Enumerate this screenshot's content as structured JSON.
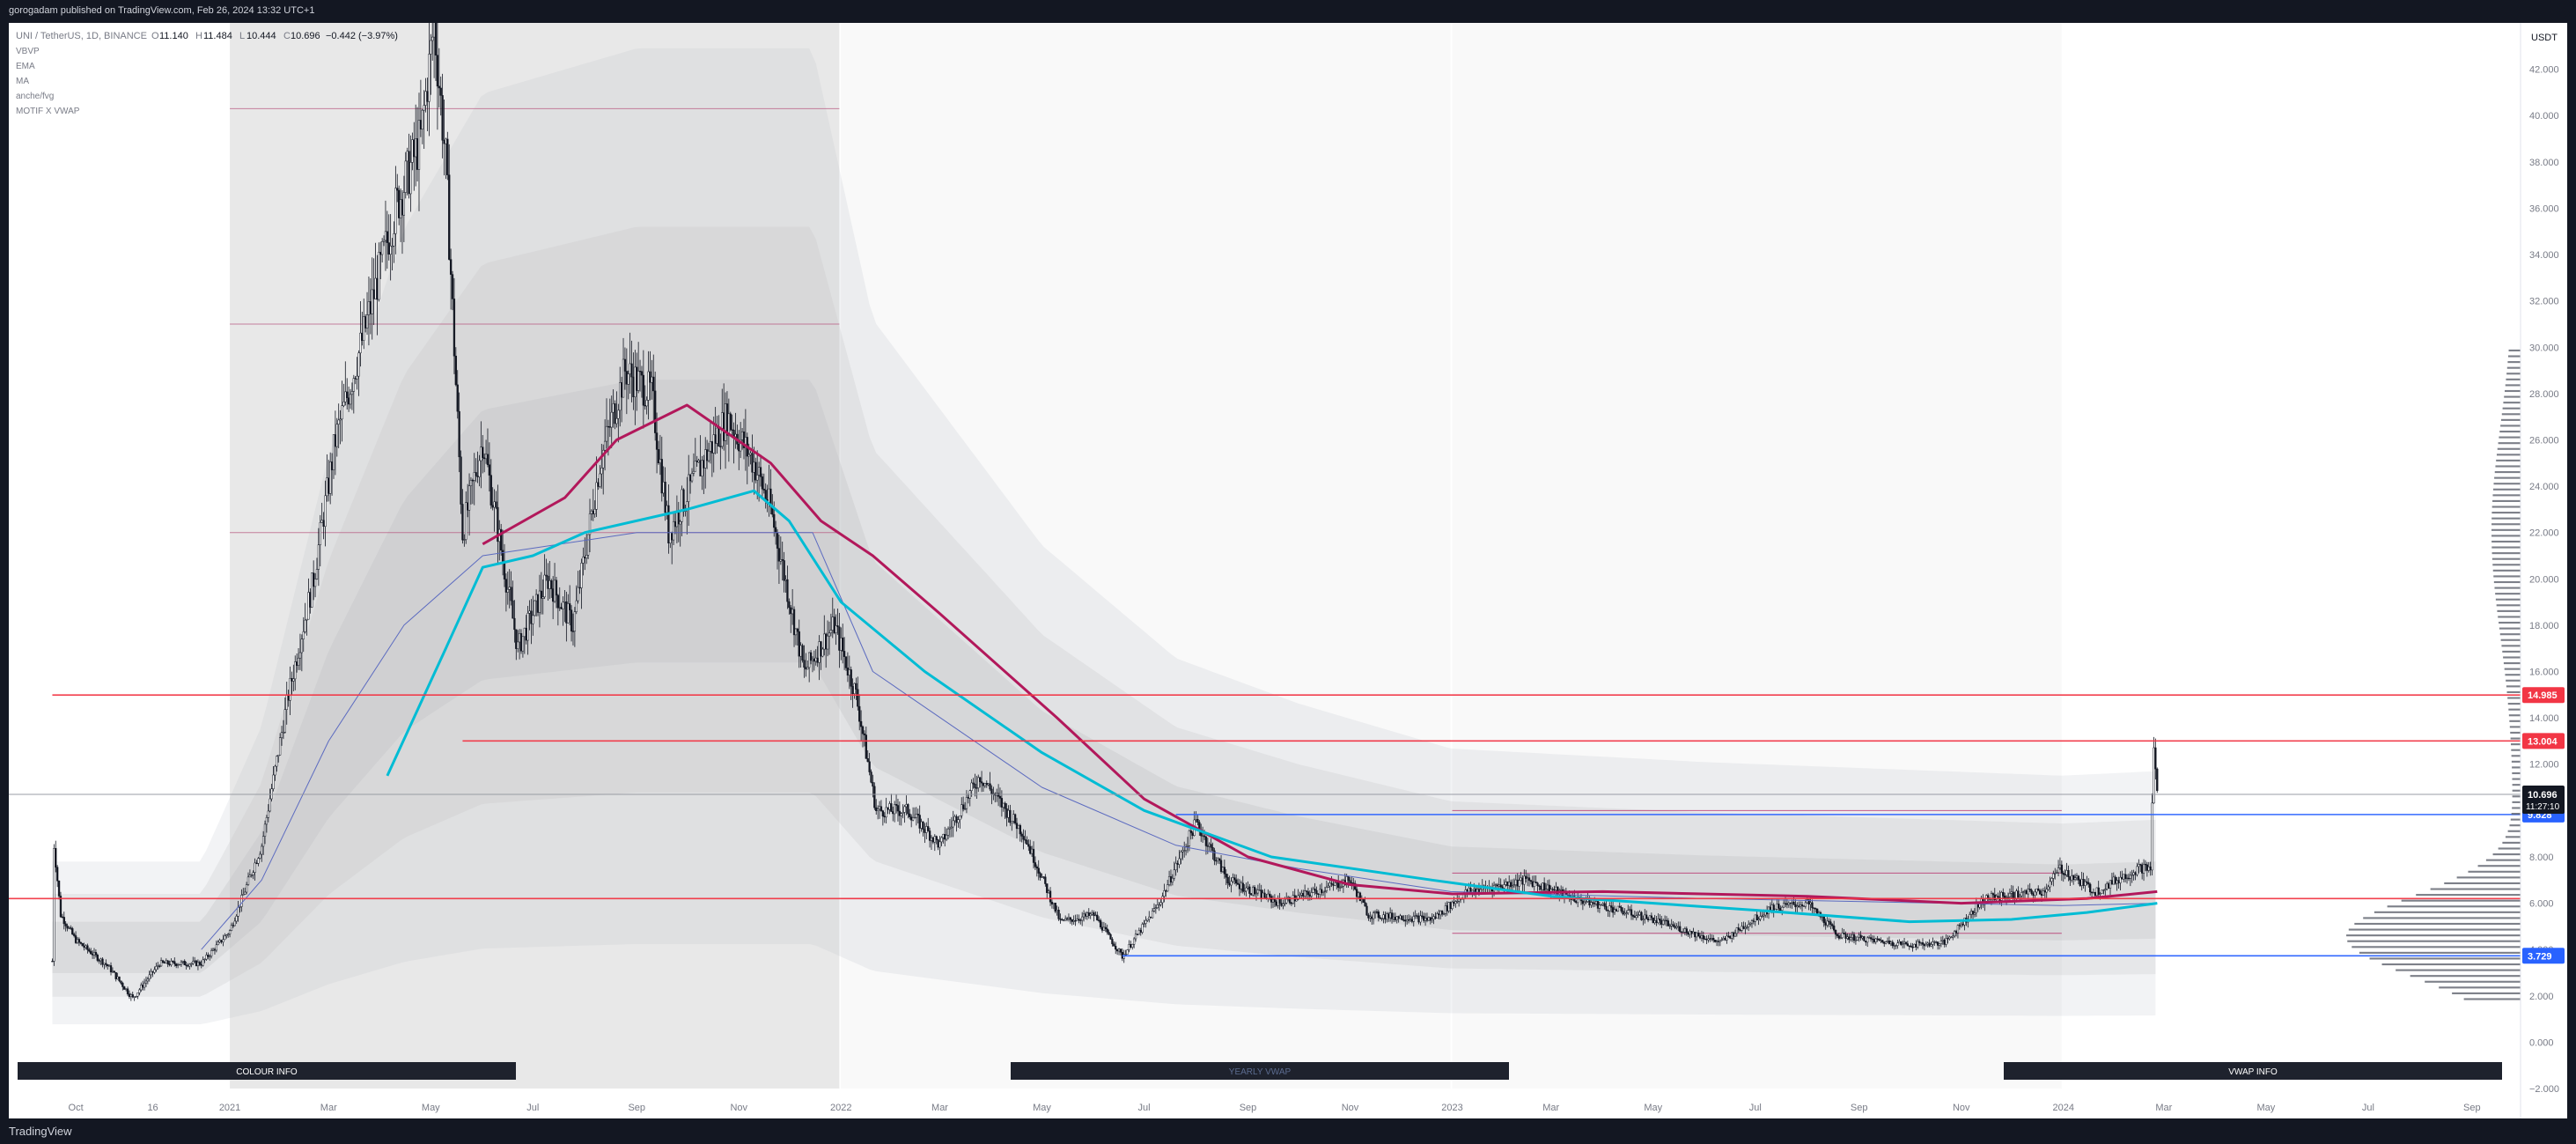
{
  "header": {
    "published": "gorogadam published on TradingView.com, Feb 26, 2024 13:32 UTC+1"
  },
  "legend": {
    "symbol": "UNI / TetherUS, 1D, BINANCE",
    "o_label": "O",
    "o": "11.140",
    "h_label": "H",
    "h": "11.484",
    "l_label": "L",
    "l": "10.444",
    "c_label": "C",
    "c": "10.696",
    "change": "−0.442 (−3.97%)",
    "indicators": [
      "VBVP",
      "EMA",
      "MA",
      "anche/fvg",
      "MOTIF X VWAP"
    ]
  },
  "footer": {
    "brand": "TradingView"
  },
  "colors": {
    "candle": "#131722",
    "ema_cyan": "#00bcd4",
    "ma_magenta": "#b2185b",
    "level_red": "#f23645",
    "level_blue": "#2962ff",
    "level_pink": "#b2185b",
    "band": "#9e9e9e",
    "price_badge": "#131722",
    "red_badge": "#f23645",
    "blue_badge": "#2962ff"
  },
  "info_boxes": [
    "COLOUR INFO",
    "YEARLY VWAP",
    "VWAP INFO"
  ],
  "chart_data": {
    "type": "candlestick",
    "title": "",
    "symbol": "UNI / TetherUS",
    "interval": "1D",
    "exchange": "BINANCE",
    "currency_label": "USDT",
    "y_ticks": [
      -2,
      0,
      2,
      4,
      6,
      8,
      10,
      12,
      14,
      16,
      18,
      20,
      22,
      24,
      26,
      28,
      30,
      32,
      34,
      36,
      38,
      40,
      42
    ],
    "ylim": [
      -2.0,
      44.0
    ],
    "x_ticks": [
      {
        "label": "Oct",
        "date": "2020-10-01"
      },
      {
        "label": "16",
        "date": "2020-11-16"
      },
      {
        "label": "2021",
        "date": "2021-01-01"
      },
      {
        "label": "Mar",
        "date": "2021-03-01"
      },
      {
        "label": "May",
        "date": "2021-05-01"
      },
      {
        "label": "Jul",
        "date": "2021-07-01"
      },
      {
        "label": "Sep",
        "date": "2021-09-01"
      },
      {
        "label": "Nov",
        "date": "2021-11-01"
      },
      {
        "label": "2022",
        "date": "2022-01-01"
      },
      {
        "label": "Mar",
        "date": "2022-03-01"
      },
      {
        "label": "May",
        "date": "2022-05-01"
      },
      {
        "label": "Jul",
        "date": "2022-07-01"
      },
      {
        "label": "Sep",
        "date": "2022-09-01"
      },
      {
        "label": "Nov",
        "date": "2022-11-01"
      },
      {
        "label": "2023",
        "date": "2023-01-01"
      },
      {
        "label": "Mar",
        "date": "2023-03-01"
      },
      {
        "label": "May",
        "date": "2023-05-01"
      },
      {
        "label": "Jul",
        "date": "2023-07-01"
      },
      {
        "label": "Sep",
        "date": "2023-09-01"
      },
      {
        "label": "Nov",
        "date": "2023-11-01"
      },
      {
        "label": "2024",
        "date": "2024-01-01"
      },
      {
        "label": "Mar",
        "date": "2024-03-01"
      },
      {
        "label": "May",
        "date": "2024-05-01"
      },
      {
        "label": "Jul",
        "date": "2024-07-01"
      },
      {
        "label": "Sep",
        "date": "2024-09-01"
      }
    ],
    "xlim": [
      "2020-08-22",
      "2024-09-30"
    ],
    "price_path": [
      [
        "2020-09-17",
        3.5
      ],
      [
        "2020-09-18",
        8.5
      ],
      [
        "2020-09-22",
        5.5
      ],
      [
        "2020-10-01",
        4.4
      ],
      [
        "2020-10-20",
        3.3
      ],
      [
        "2020-11-04",
        1.9
      ],
      [
        "2020-11-20",
        3.4
      ],
      [
        "2020-12-15",
        3.4
      ],
      [
        "2021-01-01",
        4.8
      ],
      [
        "2021-01-20",
        8.5
      ],
      [
        "2021-02-05",
        15
      ],
      [
        "2021-02-20",
        20
      ],
      [
        "2021-03-05",
        26
      ],
      [
        "2021-03-20",
        30
      ],
      [
        "2021-04-10",
        36
      ],
      [
        "2021-04-25",
        39
      ],
      [
        "2021-05-03",
        44
      ],
      [
        "2021-05-10",
        38
      ],
      [
        "2021-05-20",
        22
      ],
      [
        "2021-06-01",
        26
      ],
      [
        "2021-06-22",
        17
      ],
      [
        "2021-07-10",
        20
      ],
      [
        "2021-07-25",
        18
      ],
      [
        "2021-08-10",
        25
      ],
      [
        "2021-08-25",
        29
      ],
      [
        "2021-09-10",
        28
      ],
      [
        "2021-09-20",
        22
      ],
      [
        "2021-10-10",
        25
      ],
      [
        "2021-10-25",
        27
      ],
      [
        "2021-11-10",
        25
      ],
      [
        "2021-11-20",
        23
      ],
      [
        "2021-12-10",
        16
      ],
      [
        "2021-12-28",
        18
      ],
      [
        "2022-01-10",
        15
      ],
      [
        "2022-01-22",
        10
      ],
      [
        "2022-02-10",
        10
      ],
      [
        "2022-03-01",
        8.5
      ],
      [
        "2022-03-25",
        11.5
      ],
      [
        "2022-04-20",
        9
      ],
      [
        "2022-05-12",
        5.2
      ],
      [
        "2022-06-01",
        5.5
      ],
      [
        "2022-06-18",
        3.7
      ],
      [
        "2022-07-10",
        6
      ],
      [
        "2022-08-01",
        9.5
      ],
      [
        "2022-08-20",
        7
      ],
      [
        "2022-09-20",
        6
      ],
      [
        "2022-11-01",
        7
      ],
      [
        "2022-11-12",
        5.5
      ],
      [
        "2022-12-20",
        5.3
      ],
      [
        "2023-01-10",
        6.5
      ],
      [
        "2023-02-15",
        7
      ],
      [
        "2023-03-15",
        6.2
      ],
      [
        "2023-05-01",
        5.3
      ],
      [
        "2023-06-10",
        4.3
      ],
      [
        "2023-07-10",
        5.8
      ],
      [
        "2023-08-01",
        6
      ],
      [
        "2023-08-20",
        4.6
      ],
      [
        "2023-10-01",
        4.2
      ],
      [
        "2023-10-22",
        4.3
      ],
      [
        "2023-11-15",
        6.2
      ],
      [
        "2023-12-20",
        6.5
      ],
      [
        "2023-12-30",
        7.5
      ],
      [
        "2024-01-20",
        6.5
      ],
      [
        "2024-02-15",
        7.5
      ],
      [
        "2024-02-22",
        7.5
      ],
      [
        "2024-02-24",
        12.8
      ],
      [
        "2024-02-26",
        10.7
      ]
    ],
    "ema_path": [
      [
        "2021-04-05",
        11.5
      ],
      [
        "2021-05-10",
        17
      ],
      [
        "2021-06-01",
        20.5
      ],
      [
        "2021-07-01",
        21
      ],
      [
        "2021-08-01",
        22
      ],
      [
        "2021-10-01",
        23
      ],
      [
        "2021-11-10",
        23.8
      ],
      [
        "2021-12-01",
        22.5
      ],
      [
        "2022-01-01",
        19
      ],
      [
        "2022-02-20",
        16
      ],
      [
        "2022-05-01",
        12.5
      ],
      [
        "2022-07-01",
        10
      ],
      [
        "2022-09-15",
        8
      ],
      [
        "2022-12-20",
        7
      ],
      [
        "2023-03-01",
        6.3
      ],
      [
        "2023-07-01",
        5.7
      ],
      [
        "2023-10-01",
        5.2
      ],
      [
        "2023-12-01",
        5.3
      ],
      [
        "2024-01-15",
        5.6
      ],
      [
        "2024-02-26",
        6.0
      ]
    ],
    "ma_path": [
      [
        "2021-06-01",
        21.5
      ],
      [
        "2021-07-20",
        23.5
      ],
      [
        "2021-08-20",
        26
      ],
      [
        "2021-10-01",
        27.5
      ],
      [
        "2021-11-20",
        25
      ],
      [
        "2021-12-20",
        22.5
      ],
      [
        "2022-01-20",
        21
      ],
      [
        "2022-03-01",
        18.5
      ],
      [
        "2022-05-10",
        14
      ],
      [
        "2022-07-01",
        10.5
      ],
      [
        "2022-09-01",
        8
      ],
      [
        "2022-11-01",
        6.8
      ],
      [
        "2023-01-01",
        6.4
      ],
      [
        "2023-04-01",
        6.5
      ],
      [
        "2023-08-01",
        6.3
      ],
      [
        "2023-11-01",
        6.0
      ],
      [
        "2024-01-15",
        6.2
      ],
      [
        "2024-02-26",
        6.5
      ]
    ],
    "slow_ma_path": [
      [
        "2020-12-15",
        4
      ],
      [
        "2021-01-20",
        7
      ],
      [
        "2021-03-01",
        13
      ],
      [
        "2021-04-15",
        18
      ],
      [
        "2021-06-01",
        21
      ],
      [
        "2021-09-01",
        22
      ],
      [
        "2021-12-15",
        22
      ],
      [
        "2022-01-20",
        16
      ],
      [
        "2022-05-01",
        11
      ],
      [
        "2022-07-20",
        8.5
      ],
      [
        "2022-10-01",
        7.5
      ],
      [
        "2022-12-31",
        6.5
      ],
      [
        "2023-06-01",
        6.2
      ],
      [
        "2023-12-31",
        5.9
      ],
      [
        "2024-02-26",
        6.0
      ]
    ],
    "levels": [
      {
        "price": 14.985,
        "color": "red",
        "from": "2020-09-17",
        "to": "2024-09-30",
        "label": "14.985"
      },
      {
        "price": 13.004,
        "color": "red",
        "from": "2021-05-20",
        "to": "2024-09-30",
        "label": "13.004"
      },
      {
        "price": 9.828,
        "color": "blue",
        "from": "2022-07-20",
        "to": "2024-09-30",
        "label": "9.828"
      },
      {
        "price": 3.729,
        "color": "blue",
        "from": "2022-06-18",
        "to": "2024-09-30",
        "label": "3.729"
      },
      {
        "price": 6.2,
        "color": "red",
        "from": "2020-08-22",
        "to": "2024-09-30",
        "label": ""
      },
      {
        "price": 10.696,
        "color": "gray",
        "from": "2020-08-22",
        "to": "2024-09-30",
        "label": "10.696"
      }
    ],
    "price_badge": {
      "price": 10.696,
      "label": "10.696",
      "countdown": "11:27:10"
    },
    "yearly_vwap_zones": [
      {
        "from": "2021-01-01",
        "to": "2021-12-31",
        "levels": [
          22,
          31,
          40.3
        ]
      },
      {
        "from": "2022-01-01",
        "to": "2022-12-31",
        "levels": [
          6.2,
          13
        ]
      },
      {
        "from": "2023-01-01",
        "to": "2023-12-31",
        "levels": [
          7.3,
          4.7,
          10
        ]
      }
    ]
  }
}
